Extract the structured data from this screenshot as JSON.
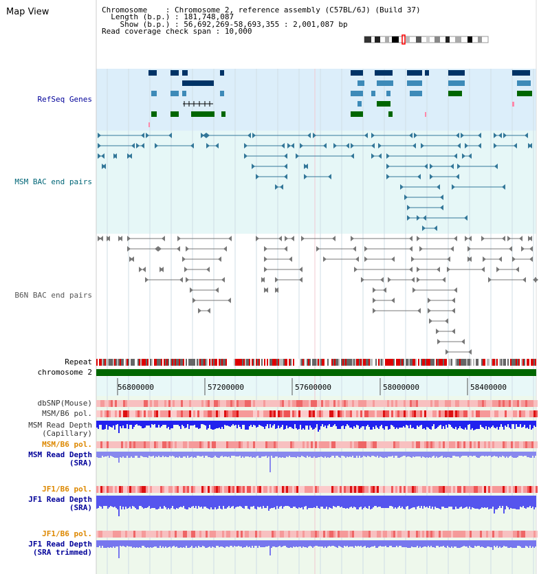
{
  "page_title": "Map View",
  "info": {
    "chromosome_key": "Chromosome    : ",
    "chromosome_val": "Chromosome 2, reference assembly (C57BL/6J) (Build 37)",
    "length_key": "  Length (b.p.) : ",
    "length_val": "181,748,087",
    "show_key": "    Show (b.p.) : ",
    "show_val": "56,692,269-58,693,355 : 2,001,087 bp",
    "span_key": "Read coverage check span : ",
    "span_val": "10,000"
  },
  "tracks": {
    "refseq": "RefSeq Genes",
    "msm_bac": "MSM BAC end pairs",
    "b6n_bac": "B6N BAC end pairs",
    "repeat": "Repeat",
    "chromosome": "chromosome 2",
    "dbsnp": "dbSNP(Mouse)",
    "msm_b6_pol": "MSM/B6 pol.",
    "msm_depth_cap_1": "MSM Read Depth",
    "msm_depth_cap_2": "(Capillary)",
    "msm_b6_pol_orange": "MSM/B6 pol.",
    "msm_depth_sra_1": "MSM Read Depth",
    "msm_depth_sra_2": "(SRA)",
    "jf1_b6_pol_1": "JF1/B6 pol.",
    "jf1_depth_sra_1": "JF1 Read Depth",
    "jf1_depth_sra_2": "(SRA)",
    "jf1_b6_pol_2": "JF1/B6 pol.",
    "jf1_depth_trim_1": "JF1 Read Depth",
    "jf1_depth_trim_2": "(SRA trimmed)"
  },
  "axis_ticks": [
    "56800000",
    "57200000",
    "57600000",
    "58000000",
    "58400000"
  ],
  "colors": {
    "refseq_bg": "#dceefa",
    "msm_bg": "#e6f7f7",
    "lower_bg": "#eef8ec",
    "gene_dark": "#003366",
    "gene_mid": "#3d8ab8",
    "gene_green": "#006600",
    "msm_line": "#337799",
    "b6n_line": "#777777",
    "chrom_green": "#006600",
    "depth_blue": "#3333ee",
    "label_blue": "#000099",
    "label_teal": "#006677",
    "label_orange": "#dd8800"
  }
}
